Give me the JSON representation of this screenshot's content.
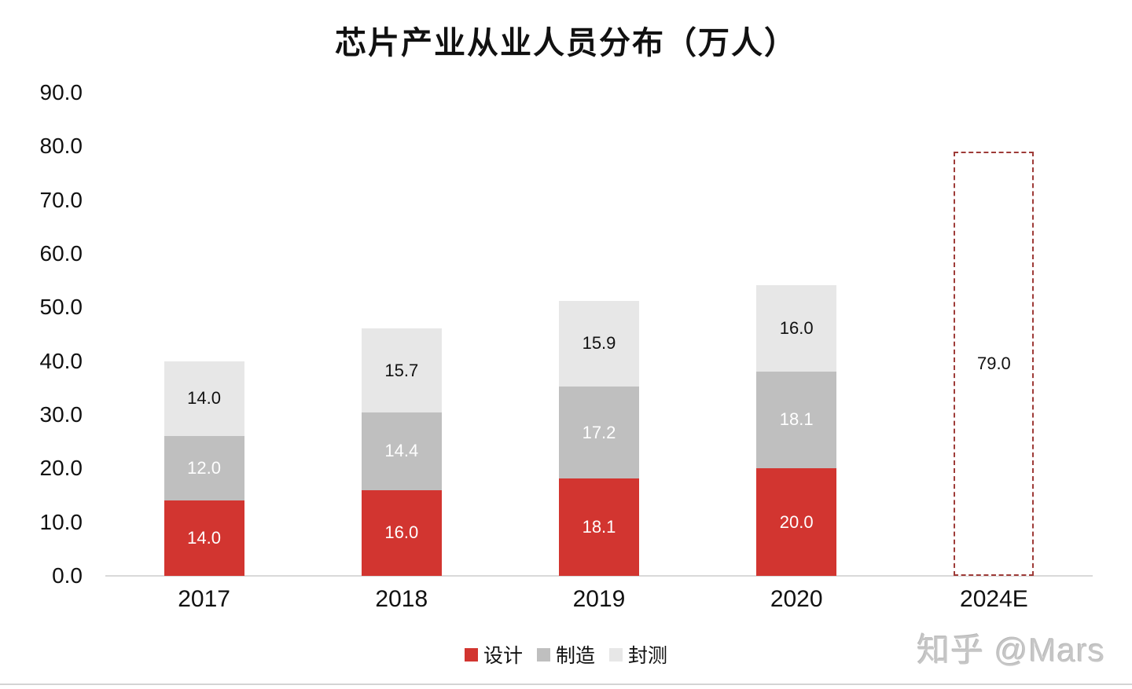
{
  "title": "芯片产业从业人员分布（万人）",
  "watermark": "知乎 @Mars",
  "colors": {
    "design_red": "#d23530",
    "manufacture_gray": "#bfbfbf",
    "packaging_lightgray": "#e7e7e7",
    "forecast_dashed_border": "#9e3b38",
    "axis_line": "#d9d9d9",
    "text_dark": "#111111",
    "text_light": "#ffffff",
    "watermark_gray": "#c6c6c6"
  },
  "chart_data": {
    "type": "bar",
    "stacked": true,
    "title": "芯片产业从业人员分布（万人）",
    "xlabel": "",
    "ylabel": "",
    "categories": [
      "2017",
      "2018",
      "2019",
      "2020",
      "2024E"
    ],
    "series": [
      {
        "name": "设计",
        "color": "#d23530",
        "label_color": "#ffffff",
        "values": [
          14.0,
          16.0,
          18.1,
          20.0,
          null
        ]
      },
      {
        "name": "制造",
        "color": "#bfbfbf",
        "label_color": "#ffffff",
        "values": [
          12.0,
          14.4,
          17.2,
          18.1,
          null
        ]
      },
      {
        "name": "封测",
        "color": "#e7e7e7",
        "label_color": "#111111",
        "values": [
          14.0,
          15.7,
          15.9,
          16.0,
          null
        ]
      }
    ],
    "forecast": {
      "category": "2024E",
      "total": 79.0,
      "label": "79.0",
      "style": "dashed-outline",
      "border_color": "#9e3b38"
    },
    "ylim": [
      0,
      90
    ],
    "ytick_step": 10,
    "yticks": [
      "90.0",
      "80.0",
      "70.0",
      "60.0",
      "50.0",
      "40.0",
      "30.0",
      "20.0",
      "10.0",
      "0.0"
    ],
    "grid": false,
    "legend_position": "bottom",
    "legend": [
      "设计",
      "制造",
      "封测"
    ]
  }
}
